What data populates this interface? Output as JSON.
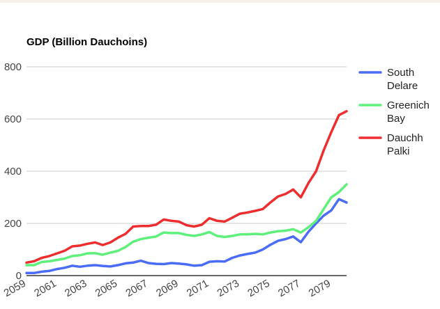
{
  "chart_data": {
    "type": "line",
    "title": "GDP (Billion Dauchoins)",
    "xlabel": "",
    "ylabel": "",
    "ylim": [
      0,
      800
    ],
    "yticks": [
      0,
      200,
      400,
      600,
      800
    ],
    "xlim": [
      2059,
      2080
    ],
    "xticks": [
      2059,
      2061,
      2063,
      2065,
      2067,
      2069,
      2071,
      2073,
      2075,
      2077,
      2079
    ],
    "grid": true,
    "legend_position": "right",
    "x": [
      2059,
      2059.5,
      2060,
      2060.5,
      2061,
      2061.5,
      2062,
      2062.5,
      2063,
      2063.5,
      2064,
      2064.5,
      2065,
      2065.5,
      2066,
      2066.5,
      2067,
      2067.5,
      2068,
      2068.5,
      2069,
      2069.5,
      2070,
      2070.5,
      2071,
      2071.5,
      2072,
      2072.5,
      2073,
      2073.5,
      2074,
      2074.5,
      2075,
      2075.5,
      2076,
      2076.5,
      2077,
      2077.5,
      2078,
      2078.5,
      2079,
      2079.5,
      2080
    ],
    "series": [
      {
        "name": "South Delare",
        "color": "#4a6cf7",
        "values": [
          10,
          10,
          15,
          18,
          25,
          30,
          38,
          34,
          38,
          40,
          37,
          35,
          40,
          47,
          50,
          57,
          48,
          45,
          44,
          48,
          46,
          43,
          38,
          40,
          53,
          55,
          54,
          68,
          77,
          83,
          88,
          100,
          118,
          133,
          140,
          150,
          128,
          168,
          200,
          230,
          250,
          293,
          280
        ]
      },
      {
        "name": "Greenich Bay",
        "color": "#5ef07b",
        "values": [
          40,
          40,
          52,
          55,
          60,
          65,
          75,
          78,
          85,
          86,
          80,
          88,
          95,
          110,
          130,
          140,
          145,
          150,
          165,
          163,
          163,
          156,
          152,
          158,
          167,
          152,
          148,
          152,
          158,
          158,
          160,
          158,
          165,
          170,
          172,
          178,
          165,
          185,
          210,
          255,
          300,
          320,
          350
        ]
      },
      {
        "name": "Dauchh Palki",
        "color": "#ee2e2e",
        "values": [
          50,
          55,
          68,
          75,
          85,
          95,
          112,
          115,
          122,
          127,
          117,
          127,
          145,
          160,
          188,
          190,
          190,
          195,
          215,
          210,
          207,
          193,
          188,
          195,
          220,
          210,
          207,
          222,
          237,
          242,
          248,
          255,
          280,
          303,
          313,
          330,
          300,
          355,
          400,
          480,
          550,
          615,
          630
        ]
      }
    ]
  }
}
